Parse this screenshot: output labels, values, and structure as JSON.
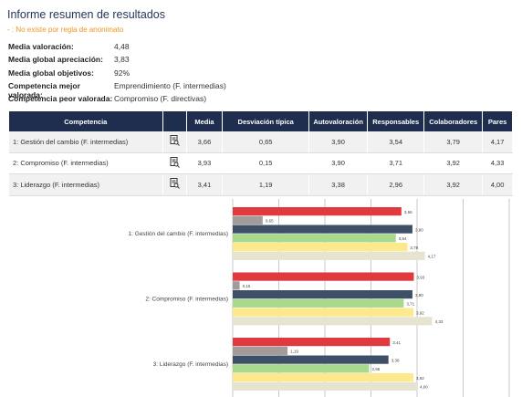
{
  "header": {
    "title": "Informe resumen de resultados",
    "note": "- : No existe por regla de anonimato"
  },
  "summary": [
    {
      "label": "Media valoración:",
      "value": "4,48"
    },
    {
      "label": "Media global apreciación:",
      "value": "3,83"
    },
    {
      "label": "Media global objetivos:",
      "value": "92%"
    },
    {
      "label": "Competencia mejor valorada:",
      "value": "Emprendimiento (F. intermedias)"
    },
    {
      "label": "Competencia peor valorada:",
      "value": "Compromiso (F. directivas)"
    }
  ],
  "table": {
    "headers": [
      "Competencia",
      "Media",
      "Desviación típica",
      "Autovaloración",
      "Responsables",
      "Colaboradores",
      "Pares"
    ],
    "rows": [
      [
        "1: Gestión del cambio (F. intermedias)",
        "3,66",
        "0,65",
        "3,90",
        "3,54",
        "3,79",
        "4,17"
      ],
      [
        "2: Compromiso (F. intermedias)",
        "3,93",
        "0,15",
        "3,90",
        "3,71",
        "3,92",
        "4,33"
      ],
      [
        "3: Liderazgo (F. intermedias)",
        "3,41",
        "1,19",
        "3,38",
        "2,96",
        "3,92",
        "4,00"
      ]
    ]
  },
  "chart_data": {
    "type": "hbar",
    "categories": [
      "1: Gestión del cambio (F. intermedias)",
      "2: Compromiso (F. intermedias)",
      "3: Liderazgo (F. intermedias)"
    ],
    "xlim": [
      0,
      6
    ],
    "xticks": [
      0,
      1,
      2,
      3,
      4,
      5,
      6
    ],
    "grid": true,
    "series": [
      {
        "color": "#e0393e",
        "values": [
          3.66,
          3.93,
          3.41
        ],
        "value_labels": [
          "3,66",
          "3,93",
          "3,41"
        ]
      },
      {
        "color": "#a39a9a",
        "values": [
          0.65,
          0.15,
          1.19
        ],
        "value_labels": [
          "0,65",
          "0,15",
          "1,19"
        ]
      },
      {
        "color": "#3e5068",
        "values": [
          3.9,
          3.9,
          3.38
        ],
        "value_labels": [
          "3,90",
          "3,90",
          "3,38"
        ]
      },
      {
        "color": "#a8d98c",
        "values": [
          3.54,
          3.71,
          2.96
        ],
        "value_labels": [
          "3,54",
          "3,71",
          "2,96"
        ]
      },
      {
        "color": "#fde98b",
        "values": [
          3.79,
          3.92,
          3.92
        ],
        "value_labels": [
          "3,79",
          "3,92",
          "3,92"
        ]
      },
      {
        "color": "#e6e4d0",
        "values": [
          4.17,
          4.33,
          4.0
        ],
        "value_labels": [
          "4,17",
          "4,33",
          "4,00"
        ]
      }
    ]
  }
}
